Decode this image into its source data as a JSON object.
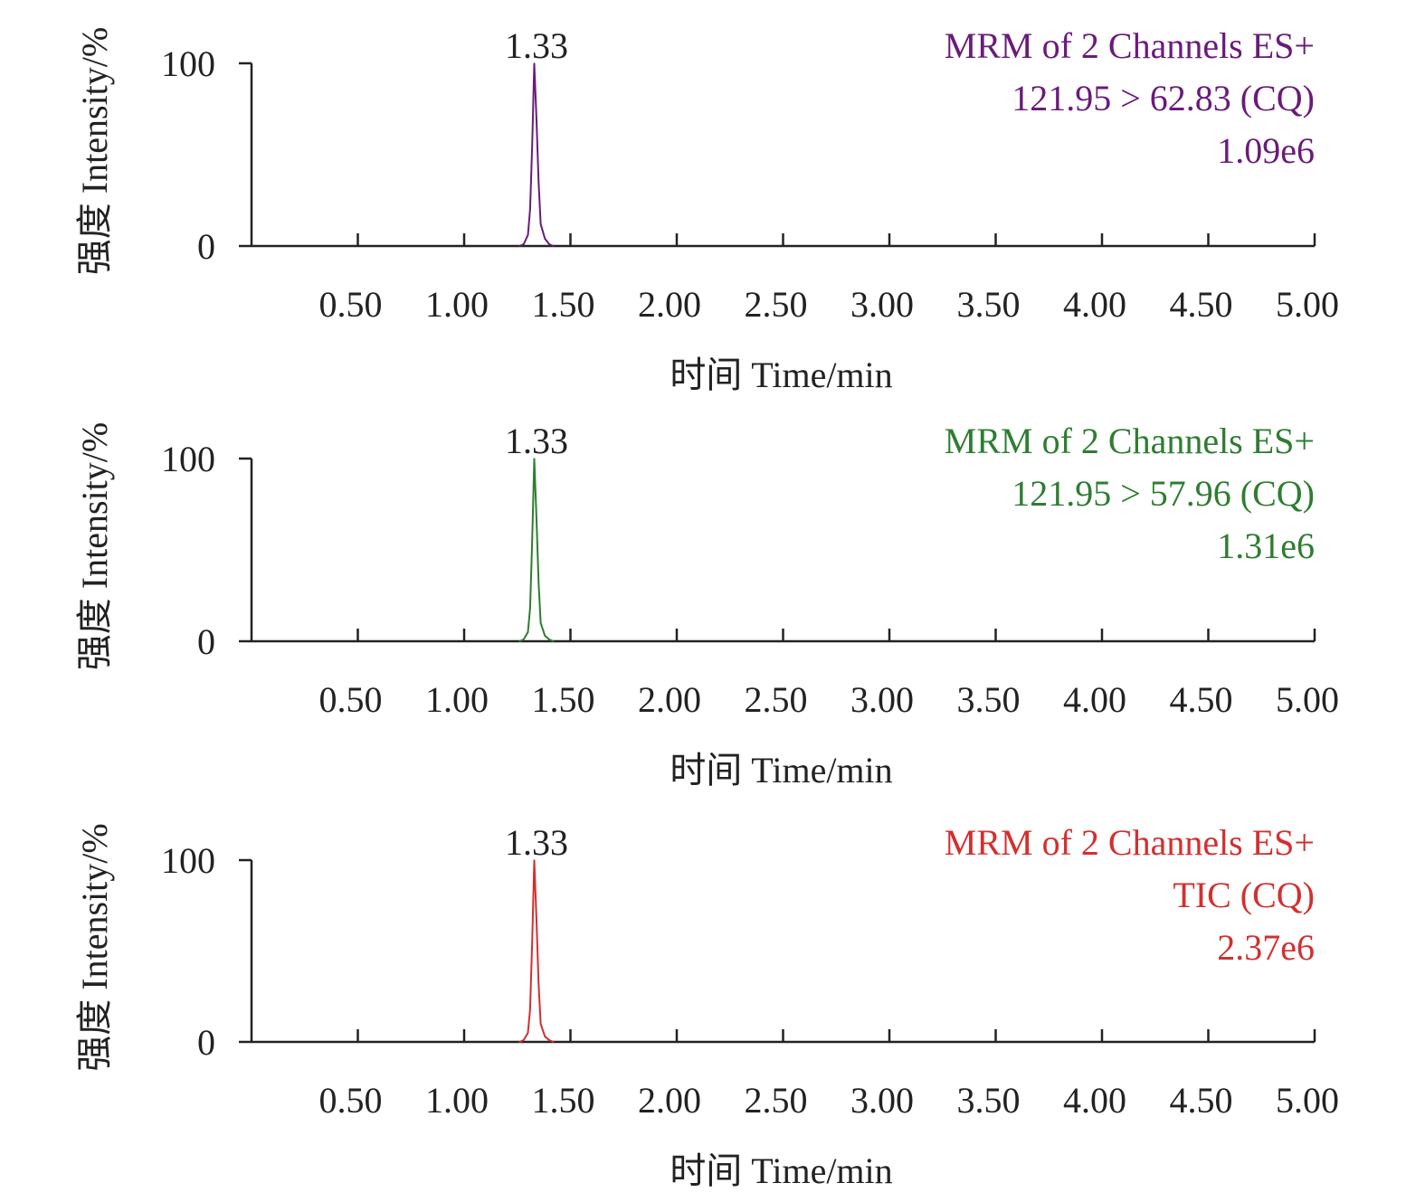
{
  "chart_data": [
    {
      "type": "line",
      "xlabel": "时间 Time/min",
      "ylabel": "强度 Intensity/%",
      "xlim": [
        0,
        5.0
      ],
      "ylim": [
        0,
        100
      ],
      "x_ticks": [
        "0.50",
        "1.00",
        "1.50",
        "2.00",
        "2.50",
        "3.00",
        "3.50",
        "4.00",
        "4.50",
        "5.00"
      ],
      "y_ticks": [
        "0",
        "100"
      ],
      "grid": false,
      "peak_label": "1.33",
      "annotation_lines": [
        "MRM of 2 Channels ES+",
        "121.95 > 62.83 (CQ)",
        "1.09e6"
      ],
      "color": "#6a1b7a",
      "series": [
        {
          "x": [
            1.26,
            1.28,
            1.3,
            1.31,
            1.32,
            1.33,
            1.34,
            1.35,
            1.36,
            1.38,
            1.4,
            1.42
          ],
          "values": [
            0,
            1,
            6,
            20,
            55,
            100,
            70,
            35,
            12,
            4,
            1,
            0
          ]
        }
      ]
    },
    {
      "type": "line",
      "xlabel": "时间 Time/min",
      "ylabel": "强度 Intensity/%",
      "xlim": [
        0,
        5.0
      ],
      "ylim": [
        0,
        100
      ],
      "x_ticks": [
        "0.50",
        "1.00",
        "1.50",
        "2.00",
        "2.50",
        "3.00",
        "3.50",
        "4.00",
        "4.50",
        "5.00"
      ],
      "y_ticks": [
        "0",
        "100"
      ],
      "grid": false,
      "peak_label": "1.33",
      "annotation_lines": [
        "MRM of 2 Channels ES+",
        "121.95 > 57.96 (CQ)",
        "1.31e6"
      ],
      "color": "#2e7d32",
      "series": [
        {
          "x": [
            1.26,
            1.28,
            1.3,
            1.31,
            1.32,
            1.33,
            1.34,
            1.35,
            1.36,
            1.38,
            1.4,
            1.42
          ],
          "values": [
            0,
            1,
            5,
            18,
            55,
            100,
            68,
            32,
            10,
            3,
            1,
            0
          ]
        }
      ]
    },
    {
      "type": "line",
      "xlabel": "时间 Time/min",
      "ylabel": "强度 Intensity/%",
      "xlim": [
        0,
        5.0
      ],
      "ylim": [
        0,
        100
      ],
      "x_ticks": [
        "0.50",
        "1.00",
        "1.50",
        "2.00",
        "2.50",
        "3.00",
        "3.50",
        "4.00",
        "4.50",
        "5.00"
      ],
      "y_ticks": [
        "0",
        "100"
      ],
      "grid": false,
      "peak_label": "1.33",
      "annotation_lines": [
        "MRM of 2 Channels ES+",
        "TIC (CQ)",
        "2.37e6"
      ],
      "color": "#d32f2f",
      "series": [
        {
          "x": [
            1.26,
            1.28,
            1.3,
            1.31,
            1.32,
            1.33,
            1.34,
            1.35,
            1.36,
            1.38,
            1.4,
            1.42
          ],
          "values": [
            0,
            1,
            5,
            18,
            55,
            100,
            68,
            32,
            10,
            3,
            1,
            0
          ]
        }
      ]
    }
  ]
}
